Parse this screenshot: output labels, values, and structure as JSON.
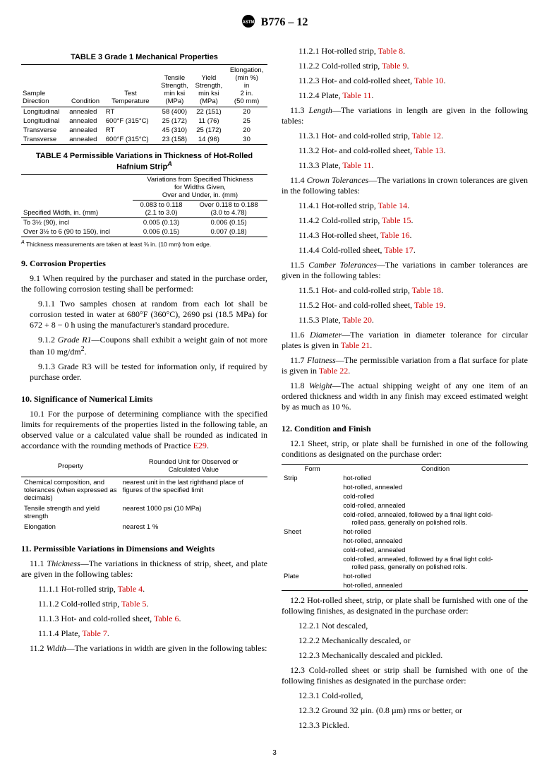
{
  "header": {
    "designation": "B776 – 12"
  },
  "left": {
    "table3": {
      "title": "TABLE 3 Grade 1 Mechanical Properties",
      "headers": [
        "Sample\nDirection",
        "Condition",
        "Test\nTemperature",
        "Tensile\nStrength,\nmin ksi\n(MPa)",
        "Yield\nStrength,\nmin ksi\n(MPa)",
        "Elongation,\n(min %)\nin\n2 in.\n(50 mm)"
      ],
      "rows": [
        [
          "Longitudinal",
          "annealed",
          "RT",
          "58 (400)",
          "22 (151)",
          "20"
        ],
        [
          "Longitudinal",
          "annealed",
          "600°F (315°C)",
          "25 (172)",
          "11 (76)",
          "25"
        ],
        [
          "Transverse",
          "annealed",
          "RT",
          "45 (310)",
          "25 (172)",
          "20"
        ],
        [
          "Transverse",
          "annealed",
          "600°F (315°C)",
          "23 (158)",
          "14 (96)",
          "30"
        ]
      ]
    },
    "table4": {
      "title_pre": "TABLE 4 Permissible Variations in Thickness of Hot-Rolled\nHafnium Strip",
      "sup": "A",
      "col1_header": "Specified Width, in. (mm)",
      "span_header": "Variations from Specified Thickness\nfor Widths Given,\nOver and Under, in. (mm)",
      "sub_headers": [
        "0.083 to 0.118\n(2.1 to 3.0)",
        "Over 0.118 to 0.188\n(3.0 to 4.78)"
      ],
      "rows": [
        [
          "To 3½ (90), incl",
          "0.005 (0.13)",
          "0.006 (0.15)"
        ],
        [
          "Over 3½ to 6 (90 to 150), incl",
          "0.006 (0.15)",
          "0.007 (0.18)"
        ]
      ],
      "footnote_sup": "A",
      "footnote": " Thickness measurements are taken at least ⅜ in. (10 mm) from edge."
    },
    "sec9": {
      "title": "9. Corrosion Properties",
      "p9_1": "9.1 When required by the purchaser and stated in the purchase order, the following corrosion testing shall be performed:",
      "p9_1_1": "9.1.1 Two samples chosen at random from each lot shall be corrosion tested in water at 680°F (360°C), 2690 psi (18.5 MPa) for 672 + 8 − 0 h using the manufacturer's standard procedure.",
      "p9_1_2_pre": "9.1.2 ",
      "p9_1_2_it": "Grade R1",
      "p9_1_2_post": "—Coupons shall exhibit a weight gain of not more than 10 mg/dm",
      "p9_1_2_sup": "2",
      "p9_1_2_end": ".",
      "p9_1_3": "9.1.3 Grade R3 will be tested for information only, if required by purchase order."
    },
    "sec10": {
      "title": "10. Significance of Numerical Limits",
      "p10_1_pre": "10.1 For the purpose of determining compliance with the specified limits for requirements of the properties listed in the following table, an observed value or a calculated value shall be rounded as indicated in accordance with the rounding methods of Practice ",
      "p10_1_link": "E29",
      "p10_1_post": ".",
      "table": {
        "headers": [
          "Property",
          "Rounded Unit for Observed or\nCalculated Value"
        ],
        "rows": [
          [
            "Chemical composition, and tolerances   (when expressed as decimals)",
            "nearest unit in the last righthand place of figures of the specified limit"
          ],
          [
            "Tensile strength and yield strength",
            "nearest 1000 psi (10 MPa)"
          ],
          [
            "Elongation",
            "nearest 1 %"
          ]
        ]
      }
    },
    "sec11L": {
      "title": "11. Permissible Variations in Dimensions and Weights",
      "p11_1_pre": "11.1 ",
      "p11_1_it": "Thickness",
      "p11_1_post": "—The variations in thickness of strip, sheet, and plate are given in the following tables:",
      "items": [
        {
          "label": "11.1.1 Hot-rolled strip, ",
          "link": "Table 4",
          "post": "."
        },
        {
          "label": "11.1.2 Cold-rolled strip, ",
          "link": "Table 5",
          "post": "."
        },
        {
          "label": "11.1.3 Hot- and cold-rolled sheet, ",
          "link": "Table 6",
          "post": "."
        },
        {
          "label": "11.1.4 Plate, ",
          "link": "Table 7",
          "post": "."
        }
      ],
      "p11_2_pre": "11.2 ",
      "p11_2_it": "Width",
      "p11_2_post": "—The variations in width are given in the following tables:"
    }
  },
  "right": {
    "sec11R1": [
      {
        "label": "11.2.1 Hot-rolled strip, ",
        "link": "Table 8",
        "post": "."
      },
      {
        "label": "11.2.2 Cold-rolled strip, ",
        "link": "Table 9",
        "post": "."
      },
      {
        "label": "11.2.3 Hot- and cold-rolled sheet, ",
        "link": "Table 10",
        "post": "."
      },
      {
        "label": "11.2.4 Plate, ",
        "link": "Table 11",
        "post": "."
      }
    ],
    "p11_3_pre": "11.3 ",
    "p11_3_it": "Length",
    "p11_3_post": "—The variations in length are given in the following tables:",
    "sec11R3": [
      {
        "label": "11.3.1 Hot- and cold-rolled strip, ",
        "link": "Table 12",
        "post": "."
      },
      {
        "label": "11.3.2 Hot- and cold-rolled sheet, ",
        "link": "Table 13",
        "post": "."
      },
      {
        "label": "11.3.3 Plate, ",
        "link": "Table 11",
        "post": "."
      }
    ],
    "p11_4_pre": "11.4 ",
    "p11_4_it": "Crown Tolerances",
    "p11_4_post": "—The variations in crown tolerances are given in the following tables:",
    "sec11R4": [
      {
        "label": "11.4.1 Hot-rolled strip, ",
        "link": "Table 14",
        "post": "."
      },
      {
        "label": "11.4.2 Cold-rolled strip, ",
        "link": "Table 15",
        "post": "."
      },
      {
        "label": "11.4.3 Hot-rolled sheet, ",
        "link": "Table 16",
        "post": "."
      },
      {
        "label": "11.4.4 Cold-rolled sheet, ",
        "link": "Table 17",
        "post": "."
      }
    ],
    "p11_5_pre": "11.5 ",
    "p11_5_it": "Camber Tolerances",
    "p11_5_post": "—The variations in camber tolerances are given in the following tables:",
    "sec11R5": [
      {
        "label": "11.5.1 Hot- and cold-rolled strip, ",
        "link": "Table 18",
        "post": "."
      },
      {
        "label": "11.5.2 Hot- and cold-rolled sheet, ",
        "link": "Table 19",
        "post": "."
      },
      {
        "label": "11.5.3 Plate, ",
        "link": "Table 20",
        "post": "."
      }
    ],
    "p11_6_pre": "11.6 ",
    "p11_6_it": "Diameter",
    "p11_6_post": "—The variation in diameter tolerance for circular plates is given in ",
    "p11_6_link": "Table 21",
    "p11_6_end": ".",
    "p11_7_pre": "11.7 ",
    "p11_7_it": "Flatness",
    "p11_7_post": "—The permissible variation from a flat surface for plate is given in ",
    "p11_7_link": "Table 22",
    "p11_7_end": ".",
    "p11_8_pre": "11.8 ",
    "p11_8_it": "Weight",
    "p11_8_post": "—The actual shipping weight of any one item of an ordered thickness and width in any finish may exceed estimated weight by as much as 10 %.",
    "sec12": {
      "title": "12. Condition and Finish",
      "p12_1": "12.1 Sheet, strip, or plate shall be furnished in one of the following conditions as designated on the purchase order:",
      "table": {
        "headers": [
          "Form",
          "Condition"
        ],
        "rows": [
          {
            "form": "Strip",
            "conds": [
              "hot-rolled",
              "hot-rolled, annealed",
              "cold-rolled",
              "cold-rolled, annealed",
              "cold-rolled, annealed, followed by a final light cold-rolled pass, generally on polished rolls."
            ]
          },
          {
            "form": "Sheet",
            "conds": [
              "hot-rolled",
              "hot-rolled, annealed",
              "cold-rolled, annealed",
              "cold-rolled, annealed, followed by a final light cold-rolled pass, generally on polished rolls."
            ]
          },
          {
            "form": "Plate",
            "conds": [
              "hot-rolled",
              "hot-rolled, annealed"
            ]
          }
        ]
      },
      "p12_2": "12.2 Hot-rolled sheet, strip, or plate shall be furnished with one of the following finishes, as designated in the purchase order:",
      "items12_2": [
        "12.2.1 Not descaled,",
        "12.2.2 Mechanically descaled, or",
        "12.2.3 Mechanically descaled and pickled."
      ],
      "p12_3": "12.3 Cold-rolled sheet or strip shall be furnished with one of the following finishes as designated in the purchase order:",
      "items12_3": [
        "12.3.1 Cold-rolled,",
        "12.3.2 Ground 32 µin. (0.8 µm) rms or better, or",
        "12.3.3 Pickled."
      ]
    }
  },
  "page": "3"
}
